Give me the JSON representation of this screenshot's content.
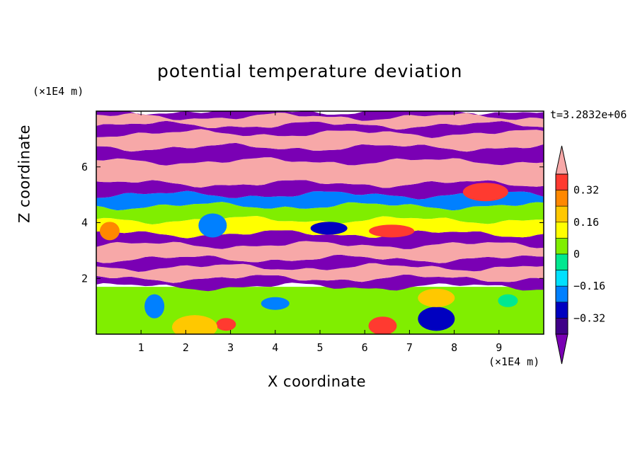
{
  "chart_data": {
    "type": "heatmap",
    "title": "potential temperature deviation",
    "xlabel": "X coordinate",
    "ylabel": "Z coordinate",
    "x_unit": "(×1E4 m)",
    "z_unit": "(×1E4 m)",
    "time_label": "t=3.2832e+06",
    "xlim": [
      0,
      10
    ],
    "ylim": [
      0,
      8
    ],
    "x_ticks": [
      1,
      2,
      3,
      4,
      5,
      6,
      7,
      8,
      9
    ],
    "y_ticks": [
      2,
      4,
      6
    ],
    "colorbar": {
      "levels": [
        -0.4,
        -0.32,
        -0.24,
        -0.16,
        -0.08,
        0,
        0.08,
        0.16,
        0.24,
        0.32,
        0.4
      ],
      "labels": [
        "0.32",
        "0.16",
        "0",
        "−0.16",
        "−0.32"
      ],
      "label_values": [
        0.32,
        0.16,
        0,
        -0.16,
        -0.32
      ],
      "colors_top_to_bottom": [
        "#f7a8a8",
        "#ff3a30",
        "#ff8800",
        "#ffc800",
        "#ffff00",
        "#80ee00",
        "#00e890",
        "#00e0ff",
        "#0080ff",
        "#0000c0",
        "#3f0088",
        "#7a00b4"
      ]
    },
    "layers": [
      {
        "z": [
          0.0,
          1.7
        ],
        "value": 0.05,
        "color": "#80ee00"
      },
      {
        "z": [
          1.7,
          2.0
        ],
        "value": -0.45,
        "color": "#7a00b4"
      },
      {
        "z": [
          2.0,
          2.4
        ],
        "value": 0.45,
        "color": "#f7a8a8"
      },
      {
        "z": [
          2.4,
          2.7
        ],
        "value": -0.45,
        "color": "#7a00b4"
      },
      {
        "z": [
          2.7,
          3.2
        ],
        "value": 0.45,
        "color": "#f7a8a8"
      },
      {
        "z": [
          3.2,
          3.6
        ],
        "value": -0.45,
        "color": "#7a00b4"
      },
      {
        "z": [
          3.6,
          4.1
        ],
        "value": 0.18,
        "color": "#ffff00"
      },
      {
        "z": [
          4.1,
          4.6
        ],
        "value": 0.05,
        "color": "#80ee00"
      },
      {
        "z": [
          4.6,
          5.0
        ],
        "value": -0.2,
        "color": "#0080ff"
      },
      {
        "z": [
          5.0,
          5.4
        ],
        "value": -0.45,
        "color": "#7a00b4"
      },
      {
        "z": [
          5.4,
          6.2
        ],
        "value": 0.45,
        "color": "#f7a8a8"
      },
      {
        "z": [
          6.2,
          6.7
        ],
        "value": -0.45,
        "color": "#7a00b4"
      },
      {
        "z": [
          6.7,
          7.2
        ],
        "value": 0.45,
        "color": "#f7a8a8"
      },
      {
        "z": [
          7.2,
          7.5
        ],
        "value": -0.45,
        "color": "#7a00b4"
      },
      {
        "z": [
          7.5,
          7.8
        ],
        "value": 0.45,
        "color": "#f7a8a8"
      },
      {
        "z": [
          7.8,
          8.0
        ],
        "value": -0.45,
        "color": "#7a00b4"
      }
    ],
    "features": [
      {
        "x": 2.9,
        "z": 0.35,
        "value": 0.35,
        "color": "#ff3a30"
      },
      {
        "x": 6.4,
        "z": 0.3,
        "value": 0.35,
        "color": "#ff3a30"
      },
      {
        "x": 7.6,
        "z": 0.55,
        "value": -0.35,
        "color": "#0000c0"
      },
      {
        "x": 6.6,
        "z": 3.7,
        "value": 0.3,
        "color": "#ff3a30"
      },
      {
        "x": 0.3,
        "z": 3.7,
        "value": 0.3,
        "color": "#ff8800"
      },
      {
        "x": 2.6,
        "z": 3.9,
        "value": -0.2,
        "color": "#0080ff"
      },
      {
        "x": 5.2,
        "z": 3.8,
        "value": -0.35,
        "color": "#0000c0"
      },
      {
        "x": 8.7,
        "z": 5.1,
        "value": 0.35,
        "color": "#ff3a30"
      },
      {
        "x": 1.3,
        "z": 1.0,
        "value": -0.2,
        "color": "#0080ff"
      },
      {
        "x": 4.0,
        "z": 1.1,
        "value": -0.2,
        "color": "#0080ff"
      },
      {
        "x": 7.6,
        "z": 1.3,
        "value": 0.2,
        "color": "#ffc800"
      },
      {
        "x": 2.2,
        "z": 0.25,
        "value": 0.25,
        "color": "#ffc800"
      },
      {
        "x": 9.2,
        "z": 1.2,
        "value": -0.08,
        "color": "#00e890"
      }
    ]
  }
}
